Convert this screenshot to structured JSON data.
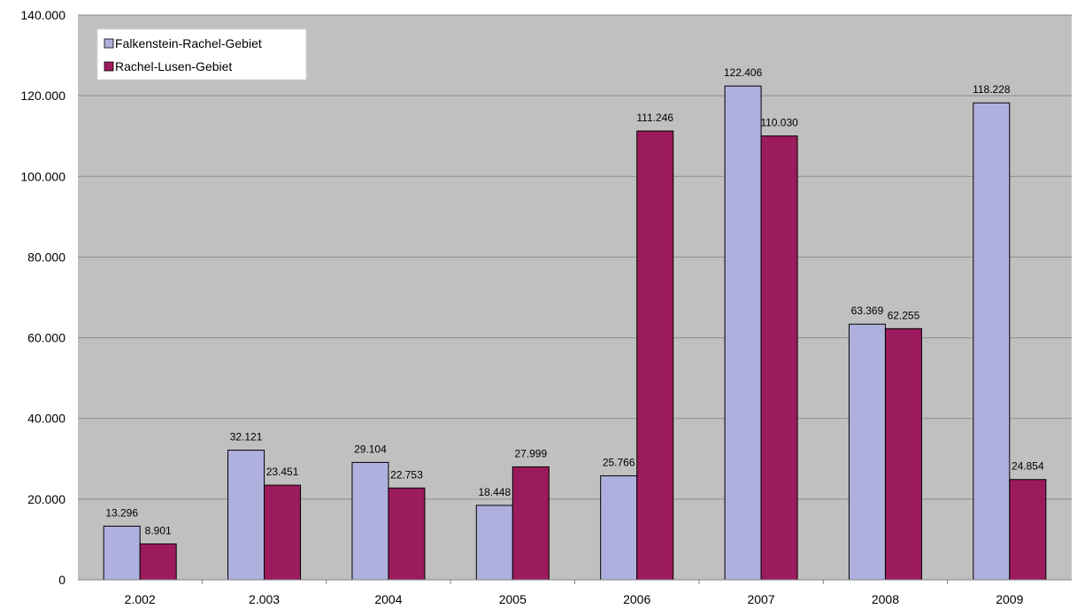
{
  "chart_data": {
    "type": "bar",
    "categories": [
      "2.002",
      "2.003",
      "2004",
      "2005",
      "2006",
      "2007",
      "2008",
      "2009"
    ],
    "series": [
      {
        "name": "Falkenstein-Rachel-Gebiet",
        "values": [
          13296,
          32121,
          29104,
          18448,
          25766,
          122406,
          63369,
          118228
        ],
        "labels": [
          "13.296",
          "32.121",
          "29.104",
          "18.448",
          "25.766",
          "122.406",
          "63.369",
          "118.228"
        ],
        "color": "#b0b0de"
      },
      {
        "name": "Rachel-Lusen-Gebiet",
        "values": [
          8901,
          23451,
          22753,
          27999,
          111246,
          110030,
          62255,
          24854
        ],
        "labels": [
          "8.901",
          "23.451",
          "22.753",
          "27.999",
          "111.246",
          "110.030",
          "62.255",
          "24.854"
        ],
        "color": "#9c1b5c"
      }
    ],
    "ylim": [
      0,
      140000
    ],
    "yticks": [
      0,
      20000,
      40000,
      60000,
      80000,
      100000,
      120000,
      140000
    ],
    "ytick_labels": [
      "0",
      "20.000",
      "40.000",
      "60.000",
      "80.000",
      "100.000",
      "120.000",
      "140.000"
    ],
    "grid": true,
    "legend": "top-left",
    "plot_background": "#c0c0c0",
    "title": "",
    "xlabel": "",
    "ylabel": ""
  }
}
